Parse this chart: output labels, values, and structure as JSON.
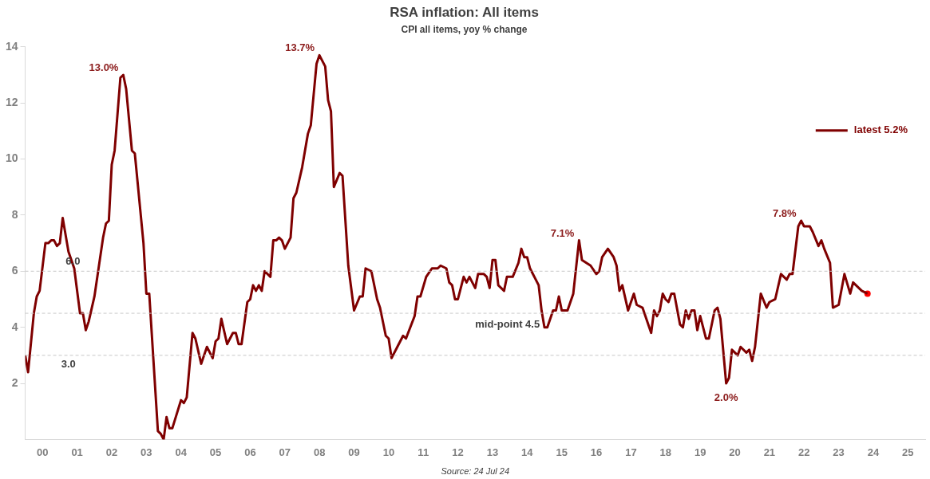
{
  "chart_data": {
    "type": "line",
    "title": "RSA inflation: All items",
    "subtitle": "CPI all items, yoy % change",
    "xlim": [
      "2000-01",
      "2026-01"
    ],
    "xticks": [
      {
        "value": "2000-07",
        "label": "00"
      },
      {
        "value": "2001-07",
        "label": "01"
      },
      {
        "value": "2002-07",
        "label": "02"
      },
      {
        "value": "2003-07",
        "label": "03"
      },
      {
        "value": "2004-07",
        "label": "04"
      },
      {
        "value": "2005-07",
        "label": "05"
      },
      {
        "value": "2006-07",
        "label": "06"
      },
      {
        "value": "2007-07",
        "label": "07"
      },
      {
        "value": "2008-07",
        "label": "08"
      },
      {
        "value": "2009-07",
        "label": "09"
      },
      {
        "value": "2010-07",
        "label": "10"
      },
      {
        "value": "2011-07",
        "label": "11"
      },
      {
        "value": "2012-07",
        "label": "12"
      },
      {
        "value": "2013-07",
        "label": "13"
      },
      {
        "value": "2014-07",
        "label": "14"
      },
      {
        "value": "2015-07",
        "label": "15"
      },
      {
        "value": "2016-07",
        "label": "16"
      },
      {
        "value": "2017-07",
        "label": "17"
      },
      {
        "value": "2018-07",
        "label": "18"
      },
      {
        "value": "2019-07",
        "label": "19"
      },
      {
        "value": "2020-07",
        "label": "20"
      },
      {
        "value": "2021-07",
        "label": "21"
      },
      {
        "value": "2022-07",
        "label": "22"
      },
      {
        "value": "2023-07",
        "label": "23"
      },
      {
        "value": "2024-07",
        "label": "24"
      },
      {
        "value": "2025-07",
        "label": "25"
      }
    ],
    "ylim": [
      0,
      14
    ],
    "yticks": [
      2,
      4,
      6,
      8,
      10,
      12,
      14
    ],
    "grid": false,
    "legend": "top right",
    "marker": "none",
    "line_style": "solid",
    "series": [
      {
        "name": "latest 5.2%",
        "color": "#7f0000",
        "x": [
          "2000-01",
          "2000-02",
          "2000-04",
          "2000-05",
          "2000-06",
          "2000-08",
          "2000-09",
          "2000-10",
          "2000-11",
          "2000-12",
          "2001-01",
          "2001-02",
          "2001-04",
          "2001-06",
          "2001-08",
          "2001-09",
          "2001-10",
          "2001-11",
          "2002-01",
          "2002-04",
          "2002-05",
          "2002-06",
          "2002-07",
          "2002-08",
          "2002-10",
          "2002-11",
          "2002-12",
          "2003-02",
          "2003-03",
          "2003-06",
          "2003-07",
          "2003-08",
          "2003-11",
          "2003-12",
          "2004-01",
          "2004-02",
          "2004-03",
          "2004-04",
          "2004-07",
          "2004-08",
          "2004-09",
          "2004-11",
          "2004-12",
          "2005-02",
          "2005-04",
          "2005-06",
          "2005-07",
          "2005-08",
          "2005-09",
          "2005-11",
          "2006-01",
          "2006-02",
          "2006-03",
          "2006-04",
          "2006-06",
          "2006-07",
          "2006-08",
          "2006-09",
          "2006-10",
          "2006-11",
          "2006-12",
          "2007-02",
          "2007-03",
          "2007-04",
          "2007-05",
          "2007-06",
          "2007-07",
          "2007-09",
          "2007-10",
          "2007-11",
          "2008-01",
          "2008-03",
          "2008-04",
          "2008-05",
          "2008-06",
          "2008-07",
          "2008-09",
          "2008-10",
          "2008-11",
          "2008-12",
          "2009-02",
          "2009-03",
          "2009-04",
          "2009-05",
          "2009-07",
          "2009-09",
          "2009-10",
          "2009-11",
          "2010-01",
          "2010-03",
          "2010-04",
          "2010-06",
          "2010-07",
          "2010-08",
          "2010-10",
          "2010-12",
          "2011-01",
          "2011-04",
          "2011-05",
          "2011-06",
          "2011-08",
          "2011-10",
          "2011-12",
          "2012-01",
          "2012-03",
          "2012-04",
          "2012-05",
          "2012-06",
          "2012-07",
          "2012-09",
          "2012-10",
          "2012-11",
          "2013-01",
          "2013-02",
          "2013-04",
          "2013-05",
          "2013-06",
          "2013-07",
          "2013-08",
          "2013-09",
          "2013-11",
          "2013-12",
          "2014-02",
          "2014-04",
          "2014-05",
          "2014-06",
          "2014-07",
          "2014-08",
          "2014-11",
          "2014-12",
          "2015-01",
          "2015-02",
          "2015-04",
          "2015-05",
          "2015-06",
          "2015-07",
          "2015-09",
          "2015-11",
          "2016-01",
          "2016-02",
          "2016-05",
          "2016-07",
          "2016-08",
          "2016-09",
          "2016-11",
          "2017-01",
          "2017-02",
          "2017-03",
          "2017-04",
          "2017-06",
          "2017-08",
          "2017-09",
          "2017-11",
          "2018-02",
          "2018-03",
          "2018-04",
          "2018-05",
          "2018-06",
          "2018-07",
          "2018-08",
          "2018-09",
          "2018-10",
          "2018-12",
          "2019-01",
          "2019-02",
          "2019-03",
          "2019-04",
          "2019-05",
          "2019-06",
          "2019-07",
          "2019-09",
          "2019-10",
          "2019-12",
          "2020-01",
          "2020-02",
          "2020-04",
          "2020-05",
          "2020-06",
          "2020-08",
          "2020-09",
          "2020-11",
          "2020-12",
          "2021-01",
          "2021-02",
          "2021-04",
          "2021-06",
          "2021-07",
          "2021-09",
          "2021-11",
          "2022-01",
          "2022-02",
          "2022-03",
          "2022-05",
          "2022-06",
          "2022-07",
          "2022-09",
          "2022-10",
          "2022-12",
          "2023-01",
          "2023-02",
          "2023-04",
          "2023-05",
          "2023-07",
          "2023-09",
          "2023-11",
          "2023-12",
          "2024-03",
          "2024-05"
        ],
        "values": [
          3.0,
          2.4,
          4.5,
          5.1,
          5.3,
          7.0,
          7.0,
          7.1,
          7.1,
          6.9,
          7.0,
          7.9,
          6.7,
          6.1,
          4.5,
          4.5,
          3.9,
          4.2,
          5.1,
          7.2,
          7.7,
          7.8,
          9.8,
          10.3,
          12.9,
          13.0,
          12.5,
          10.3,
          10.2,
          7.0,
          5.2,
          5.2,
          0.3,
          0.2,
          0.0,
          0.8,
          0.4,
          0.4,
          1.4,
          1.3,
          1.5,
          3.8,
          3.6,
          2.7,
          3.3,
          2.9,
          3.5,
          3.6,
          4.3,
          3.4,
          3.8,
          3.8,
          3.4,
          3.4,
          4.9,
          5.0,
          5.5,
          5.3,
          5.5,
          5.3,
          6.0,
          5.8,
          7.1,
          7.1,
          7.2,
          7.1,
          6.8,
          7.2,
          8.6,
          8.8,
          9.7,
          10.9,
          11.2,
          12.3,
          13.4,
          13.7,
          13.3,
          12.1,
          11.7,
          9.0,
          9.5,
          9.4,
          7.8,
          6.2,
          4.6,
          5.1,
          5.1,
          6.1,
          6.0,
          5.0,
          4.7,
          3.7,
          3.6,
          2.9,
          3.3,
          3.7,
          3.6,
          4.4,
          5.1,
          5.1,
          5.8,
          6.1,
          6.1,
          6.2,
          6.1,
          5.6,
          5.5,
          5.0,
          5.0,
          5.8,
          5.6,
          5.8,
          5.4,
          5.9,
          5.9,
          5.8,
          5.4,
          6.4,
          6.4,
          5.5,
          5.3,
          5.8,
          5.8,
          6.3,
          6.8,
          6.5,
          6.5,
          6.1,
          5.5,
          4.6,
          4.0,
          4.0,
          4.6,
          4.6,
          5.1,
          4.6,
          4.6,
          5.2,
          7.1,
          6.4,
          6.2,
          5.9,
          6.0,
          6.5,
          6.8,
          6.5,
          6.2,
          5.3,
          5.5,
          4.6,
          5.2,
          4.8,
          4.7,
          3.8,
          4.6,
          4.4,
          4.6,
          5.2,
          5.0,
          4.9,
          5.2,
          5.2,
          4.1,
          4.0,
          4.6,
          4.3,
          4.6,
          4.6,
          3.9,
          4.4,
          3.6,
          3.6,
          4.6,
          4.7,
          4.3,
          2.0,
          2.2,
          3.2,
          3.0,
          3.3,
          3.1,
          3.2,
          2.8,
          3.3,
          5.2,
          4.7,
          4.9,
          5.0,
          5.9,
          5.7,
          5.9,
          5.9,
          7.6,
          7.8,
          7.6,
          7.6,
          7.4,
          6.9,
          7.1,
          6.8,
          6.3,
          4.7,
          4.8,
          5.9,
          5.2,
          5.6,
          5.3,
          5.2
        ]
      },
      {
        "type": "scatter",
        "color": "#ff0000",
        "x": [
          "2024-05"
        ],
        "values": [
          5.2
        ],
        "marker": "circle"
      }
    ],
    "ref_lines": [
      {
        "axis": "y",
        "value": 3,
        "label": "3.0",
        "color": "#c8c8c8",
        "line_style": "dashed"
      },
      {
        "axis": "y",
        "value": 4.5,
        "label": "mid-point 4.5",
        "color": "#c8c8c8",
        "line_style": "dashed"
      },
      {
        "axis": "y",
        "value": 6,
        "label": "6.0",
        "color": "#c8c8c8",
        "line_style": "dashed"
      }
    ],
    "annotations": [
      {
        "text": "13.0%",
        "x": "2002-11",
        "y": 13.0
      },
      {
        "text": "13.7%",
        "x": "2008-07",
        "y": 13.7
      },
      {
        "text": "7.1%",
        "x": "2016-01",
        "y": 7.1
      },
      {
        "text": "2.0%",
        "x": "2020-04",
        "y": 2.0
      },
      {
        "text": "7.8%",
        "x": "2022-06",
        "y": 7.8
      },
      "Source: 24 Jul 24"
    ]
  }
}
